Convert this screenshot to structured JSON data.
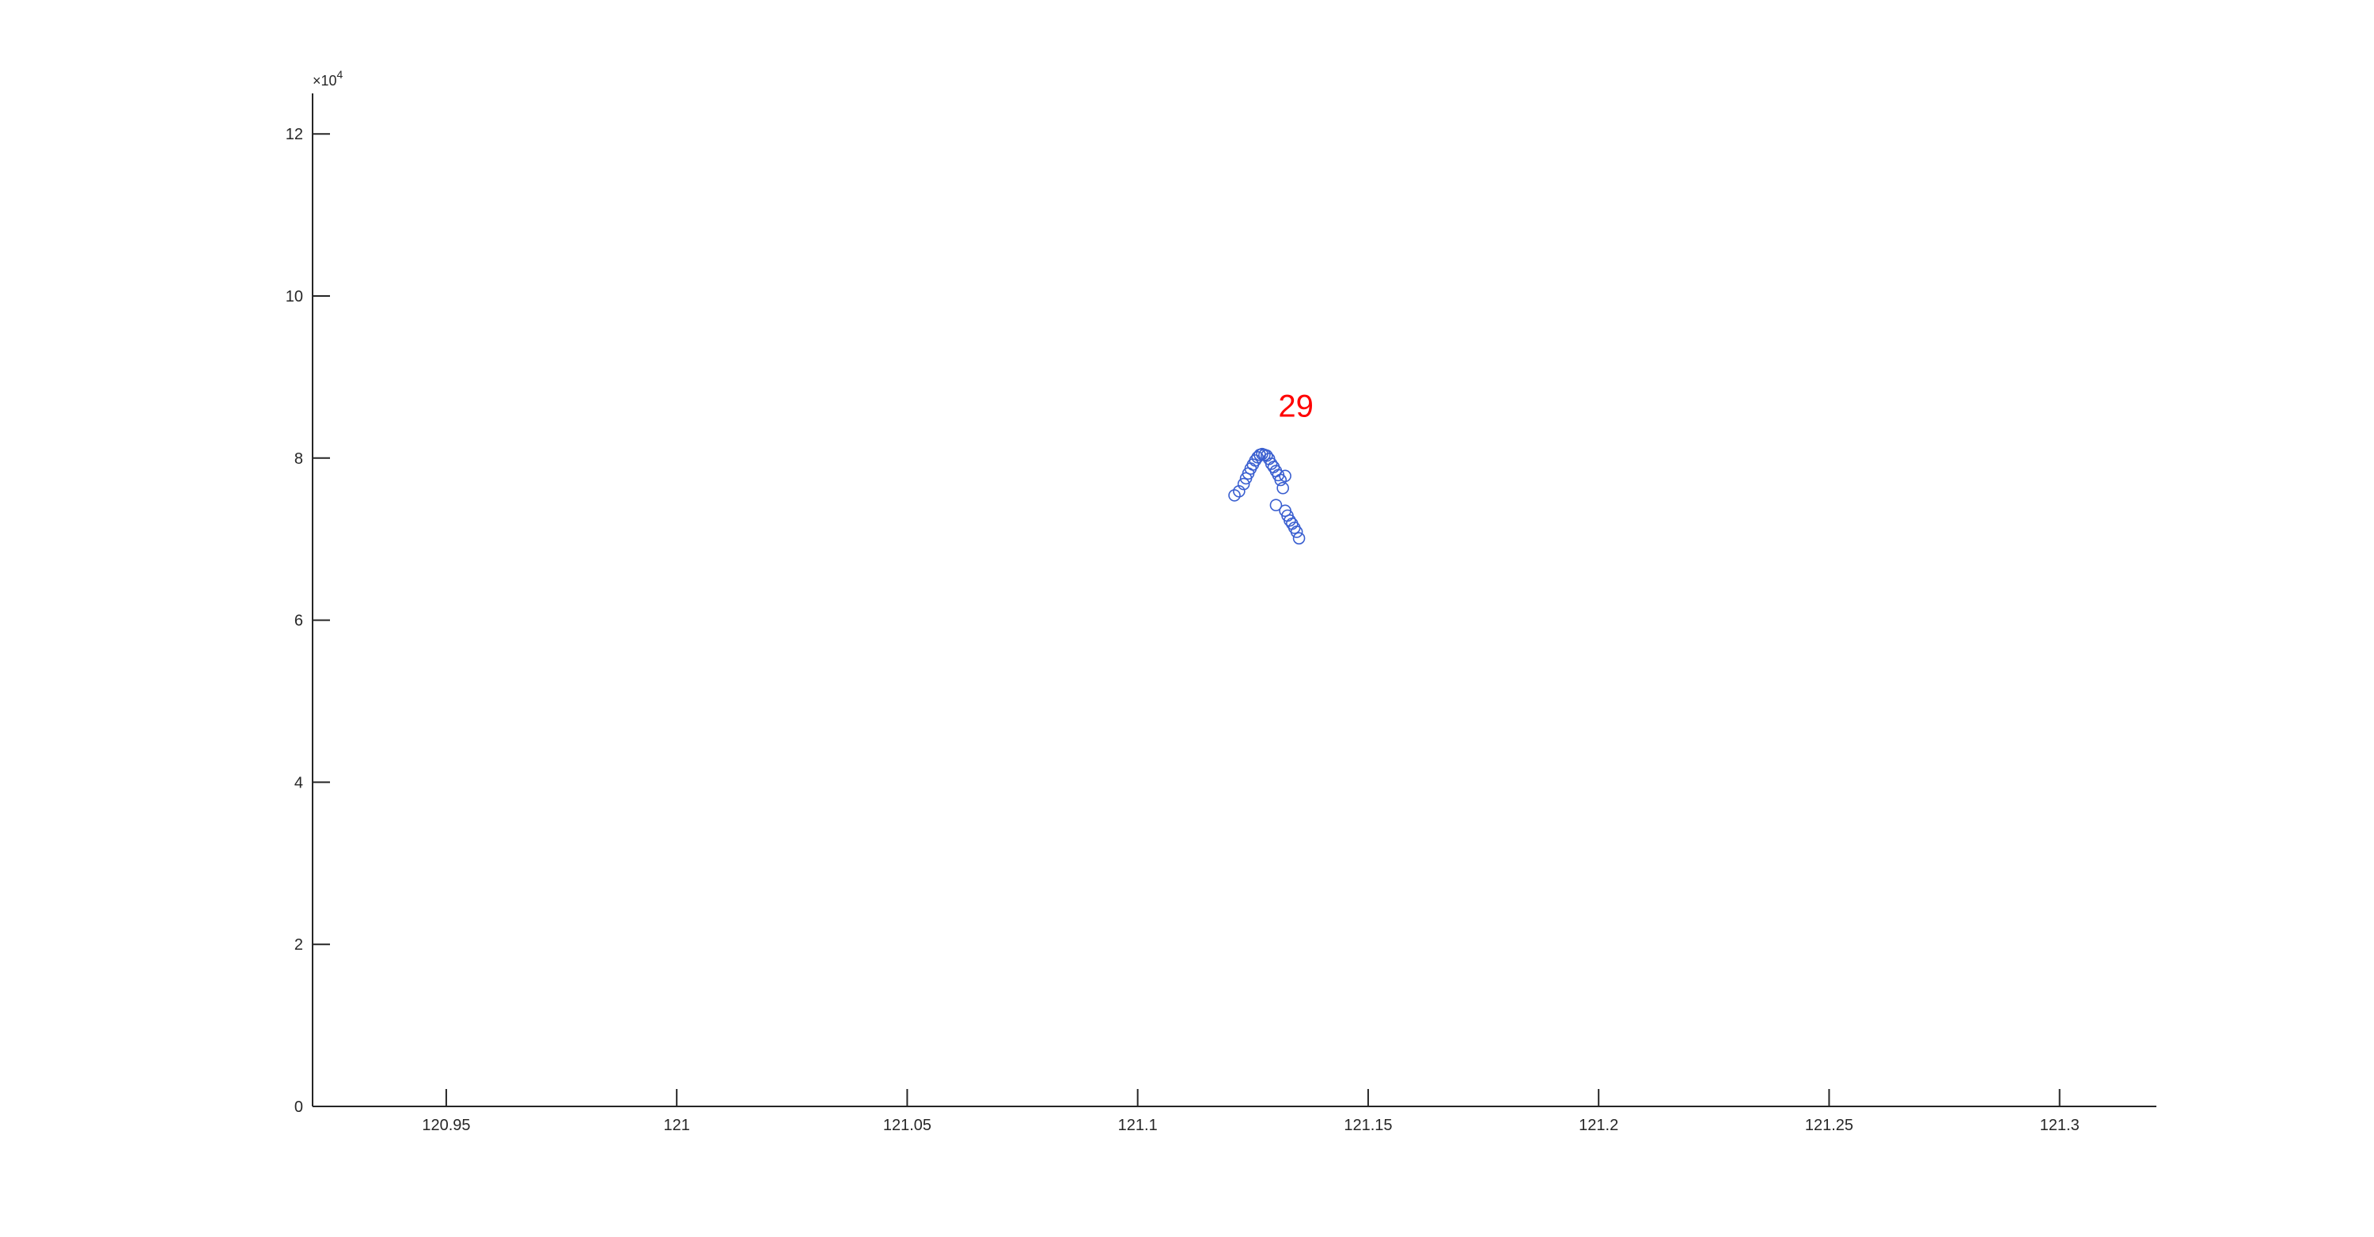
{
  "chart_data": {
    "type": "scatter",
    "title": "",
    "xlabel": "",
    "ylabel": "",
    "xlim": [
      120.921,
      121.321
    ],
    "ylim": [
      0,
      125000
    ],
    "x_ticks": [
      120.95,
      121,
      121.05,
      121.1,
      121.15,
      121.2,
      121.25,
      121.3
    ],
    "x_tick_labels": [
      "120.95",
      "121",
      "121.05",
      "121.1",
      "121.15",
      "121.2",
      "121.25",
      "121.3"
    ],
    "y_ticks": [
      0,
      20000,
      40000,
      60000,
      80000,
      100000,
      120000
    ],
    "y_tick_labels": [
      "0",
      "2",
      "4",
      "6",
      "8",
      "10",
      "12"
    ],
    "y_exponent_label": "×10",
    "y_exponent_power": "4",
    "grid": false,
    "legend": "none",
    "series": [
      {
        "marker": "circle-open",
        "color": "#3a5fd0",
        "x": [
          121.121,
          121.122,
          121.123,
          121.1235,
          121.124,
          121.1245,
          121.125,
          121.1255,
          121.126,
          121.1265,
          121.127,
          121.1275,
          121.128,
          121.1285,
          121.129,
          121.1295,
          121.13,
          121.1305,
          121.131,
          121.1315,
          121.132,
          121.13,
          121.132,
          121.1325,
          121.133,
          121.1335,
          121.134,
          121.1345,
          121.135
        ],
        "y": [
          75400,
          75900,
          76800,
          77500,
          78100,
          78700,
          79200,
          79700,
          80100,
          80400,
          80500,
          80400,
          80300,
          79900,
          79300,
          78900,
          78400,
          77900,
          77300,
          76300,
          77800,
          74200,
          73500,
          72900,
          72300,
          71900,
          71400,
          70900,
          70100
        ]
      }
    ],
    "annotations": [
      {
        "text": "29",
        "x": 121.1305,
        "y": 85100,
        "color": "#ff0000"
      }
    ]
  }
}
